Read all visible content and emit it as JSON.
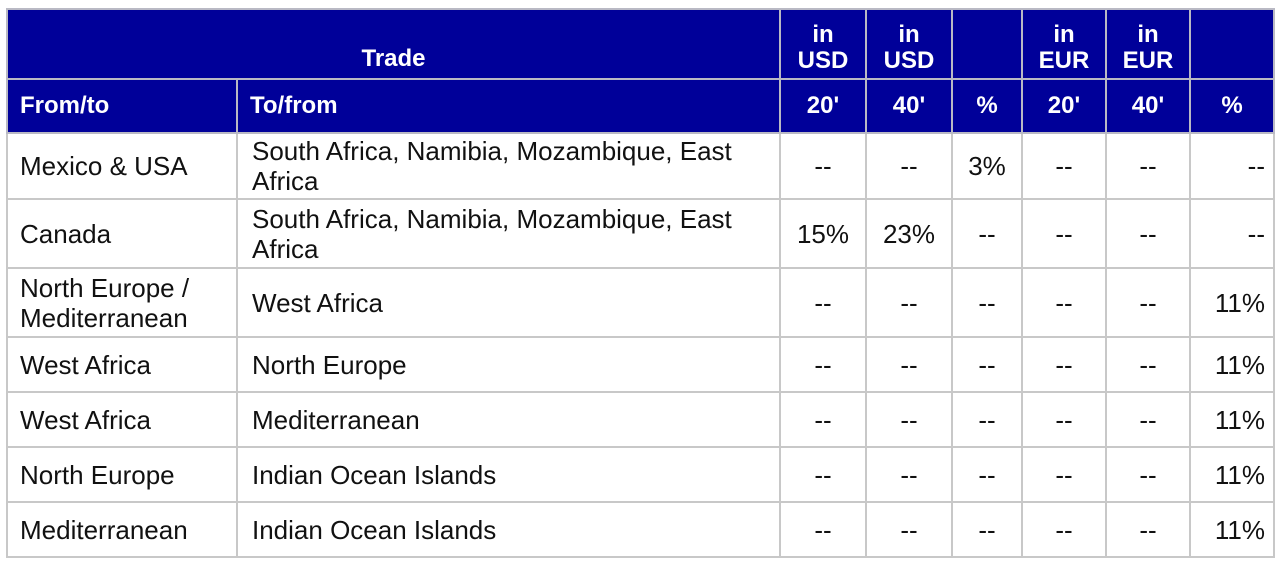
{
  "header": {
    "trade": "Trade",
    "unit_cols": [
      {
        "line1": "in",
        "line2": "USD"
      },
      {
        "line1": "in",
        "line2": "USD"
      },
      {
        "line1": "",
        "line2": ""
      },
      {
        "line1": "in",
        "line2": "EUR"
      },
      {
        "line1": "in",
        "line2": "EUR"
      },
      {
        "line1": "",
        "line2": ""
      }
    ],
    "from_to": "From/to",
    "to_from": "To/from",
    "sub_cols": [
      "20'",
      "40'",
      "%",
      "20'",
      "40'",
      "%"
    ]
  },
  "rows": [
    {
      "from": "Mexico & USA",
      "to": "South Africa, Namibia, Mozambique, East Africa",
      "values": [
        "--",
        "--",
        "3%",
        "--",
        "--",
        "--"
      ]
    },
    {
      "from": "Canada",
      "to": "South Africa, Namibia, Mozambique, East Africa",
      "values": [
        "15%",
        "23%",
        "--",
        "--",
        "--",
        "--"
      ]
    },
    {
      "from": "North Europe / Mediterranean",
      "to": "West Africa",
      "values": [
        "--",
        "--",
        "--",
        "--",
        "--",
        "11%"
      ]
    },
    {
      "from": "West Africa",
      "to": "North Europe",
      "values": [
        "--",
        "--",
        "--",
        "--",
        "--",
        "11%"
      ]
    },
    {
      "from": "West Africa",
      "to": "Mediterranean",
      "values": [
        "--",
        "--",
        "--",
        "--",
        "--",
        "11%"
      ]
    },
    {
      "from": "North Europe",
      "to": "Indian Ocean Islands",
      "values": [
        "--",
        "--",
        "--",
        "--",
        "--",
        "11%"
      ]
    },
    {
      "from": "Mediterranean",
      "to": "Indian Ocean Islands",
      "values": [
        "--",
        "--",
        "--",
        "--",
        "--",
        "11%"
      ]
    }
  ]
}
